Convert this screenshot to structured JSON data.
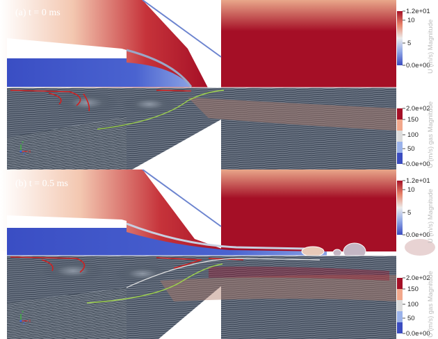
{
  "panels": [
    {
      "label": "(a) t = 0 ms",
      "velocity_colorbar": {
        "title": "U (m/s) Magnitude",
        "ticks": [
          "1.2e+01",
          "10",
          "5",
          "0.0e+00"
        ]
      },
      "gas_colorbar": {
        "title": "U (m/s) gas Magnitude",
        "ticks": [
          "2.0e+02",
          "150",
          "100",
          "50",
          "0.0e+00"
        ]
      },
      "axes_triad": [
        "X",
        "Y",
        "Z"
      ]
    },
    {
      "label": "(b) t = 0.5 ms",
      "velocity_colorbar": {
        "title": "U (m/s) Magnitude",
        "ticks": [
          "1.2e+01",
          "10",
          "5",
          "0.0e+00"
        ]
      },
      "gas_colorbar": {
        "title": "U (m/s) gas Magnitude",
        "ticks": [
          "2.0e+02",
          "150",
          "100",
          "50",
          "0.0e+00"
        ]
      },
      "axes_triad": [
        "X",
        "Y",
        "Z"
      ]
    }
  ],
  "colors": {
    "liquid_red": "#a50f26",
    "low_blue": "#3d4fc4",
    "streamline_gray": "#46505f",
    "streamline_red": "#d02020",
    "streamline_green": "#9ed24a"
  }
}
